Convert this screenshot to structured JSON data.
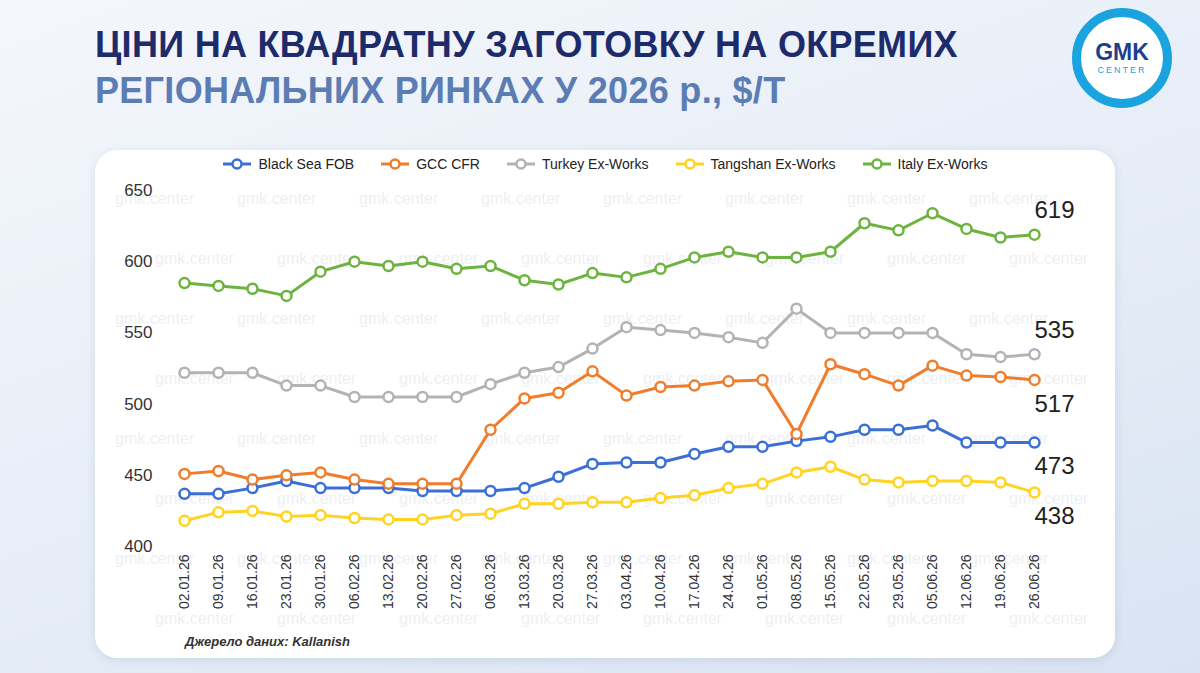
{
  "chart_data": {
    "type": "line",
    "title": "ЦІНИ НА КВАДРАТНУ ЗАГОТОВКУ НА ОКРЕМИХ",
    "subtitle": "РЕГІОНАЛЬНИХ РИНКАХ У 2026 р., $/Т",
    "source": "Джерело даних: Kallanish",
    "logo": [
      "GMK",
      "CENTER"
    ],
    "watermark": "gmk.center",
    "x": [
      "02.01.26",
      "09.01.26",
      "16.01.26",
      "23.01.26",
      "30.01.26",
      "06.02.26",
      "13.02.26",
      "20.02.26",
      "27.02.26",
      "06.03.26",
      "13.03.26",
      "20.03.26",
      "27.03.26",
      "03.04.26",
      "10.04.26",
      "17.04.26",
      "24.04.26",
      "01.05.26",
      "08.05.26",
      "15.05.26",
      "22.05.26",
      "29.05.26",
      "05.06.26",
      "12.06.26",
      "19.06.26",
      "26.06.26"
    ],
    "series": [
      {
        "name": "Black Sea FOB",
        "color": "#3b6fd6",
        "values": [
          437,
          437,
          441,
          446,
          441,
          441,
          441,
          439,
          439,
          439,
          441,
          449,
          458,
          459,
          459,
          465,
          470,
          470,
          474,
          477,
          482,
          482,
          485,
          473,
          473,
          473
        ],
        "value_labels": [
          null,
          null,
          null,
          null,
          null,
          null,
          null,
          null,
          null,
          null,
          null,
          null,
          null,
          null,
          null,
          null,
          null,
          null,
          null,
          null,
          null,
          null,
          null,
          null,
          null,
          "473"
        ]
      },
      {
        "name": "GCC CFR",
        "color": "#f07d2c",
        "values": [
          451,
          453,
          447,
          450,
          452,
          447,
          444,
          444,
          444,
          482,
          504,
          508,
          523,
          506,
          512,
          513,
          516,
          517,
          479,
          528,
          521,
          513,
          527,
          520,
          519,
          517
        ],
        "value_labels": [
          null,
          null,
          null,
          null,
          null,
          null,
          null,
          null,
          null,
          null,
          null,
          null,
          null,
          null,
          null,
          null,
          null,
          null,
          null,
          null,
          null,
          null,
          null,
          null,
          null,
          "517"
        ]
      },
      {
        "name": "Turkey Ex-Works",
        "color": "#b3b3b3",
        "values": [
          522,
          522,
          522,
          513,
          513,
          505,
          505,
          505,
          505,
          514,
          522,
          526,
          539,
          554,
          552,
          550,
          547,
          543,
          567,
          550,
          550,
          550,
          550,
          535,
          533,
          535
        ],
        "value_labels": [
          null,
          null,
          null,
          null,
          null,
          null,
          null,
          null,
          null,
          null,
          null,
          null,
          null,
          null,
          null,
          null,
          null,
          null,
          null,
          null,
          null,
          null,
          null,
          null,
          null,
          "535"
        ]
      },
      {
        "name": "Tangshan Ex-Works",
        "color": "#ffd321",
        "values": [
          418,
          424,
          425,
          421,
          422,
          420,
          419,
          419,
          422,
          423,
          430,
          430,
          431,
          431,
          434,
          436,
          441,
          444,
          452,
          456,
          447,
          445,
          446,
          446,
          445,
          438
        ],
        "value_labels": [
          null,
          null,
          null,
          null,
          null,
          null,
          null,
          null,
          null,
          null,
          null,
          null,
          null,
          null,
          null,
          null,
          null,
          null,
          null,
          null,
          null,
          null,
          null,
          null,
          null,
          "438"
        ]
      },
      {
        "name": "Italy Ex-Works",
        "color": "#6db33f",
        "values": [
          585,
          583,
          581,
          576,
          593,
          600,
          597,
          600,
          595,
          597,
          587,
          584,
          592,
          589,
          595,
          603,
          607,
          603,
          603,
          607,
          627,
          622,
          634,
          623,
          617,
          619
        ],
        "value_labels": [
          null,
          null,
          null,
          null,
          null,
          null,
          null,
          null,
          null,
          null,
          null,
          null,
          null,
          null,
          null,
          null,
          null,
          null,
          null,
          null,
          null,
          null,
          null,
          null,
          null,
          "619"
        ]
      }
    ],
    "ylim": [
      400,
      650
    ],
    "yticks": [
      400,
      450,
      500,
      550,
      600,
      650
    ],
    "grid": false,
    "legend": "top",
    "marker": "circle"
  }
}
